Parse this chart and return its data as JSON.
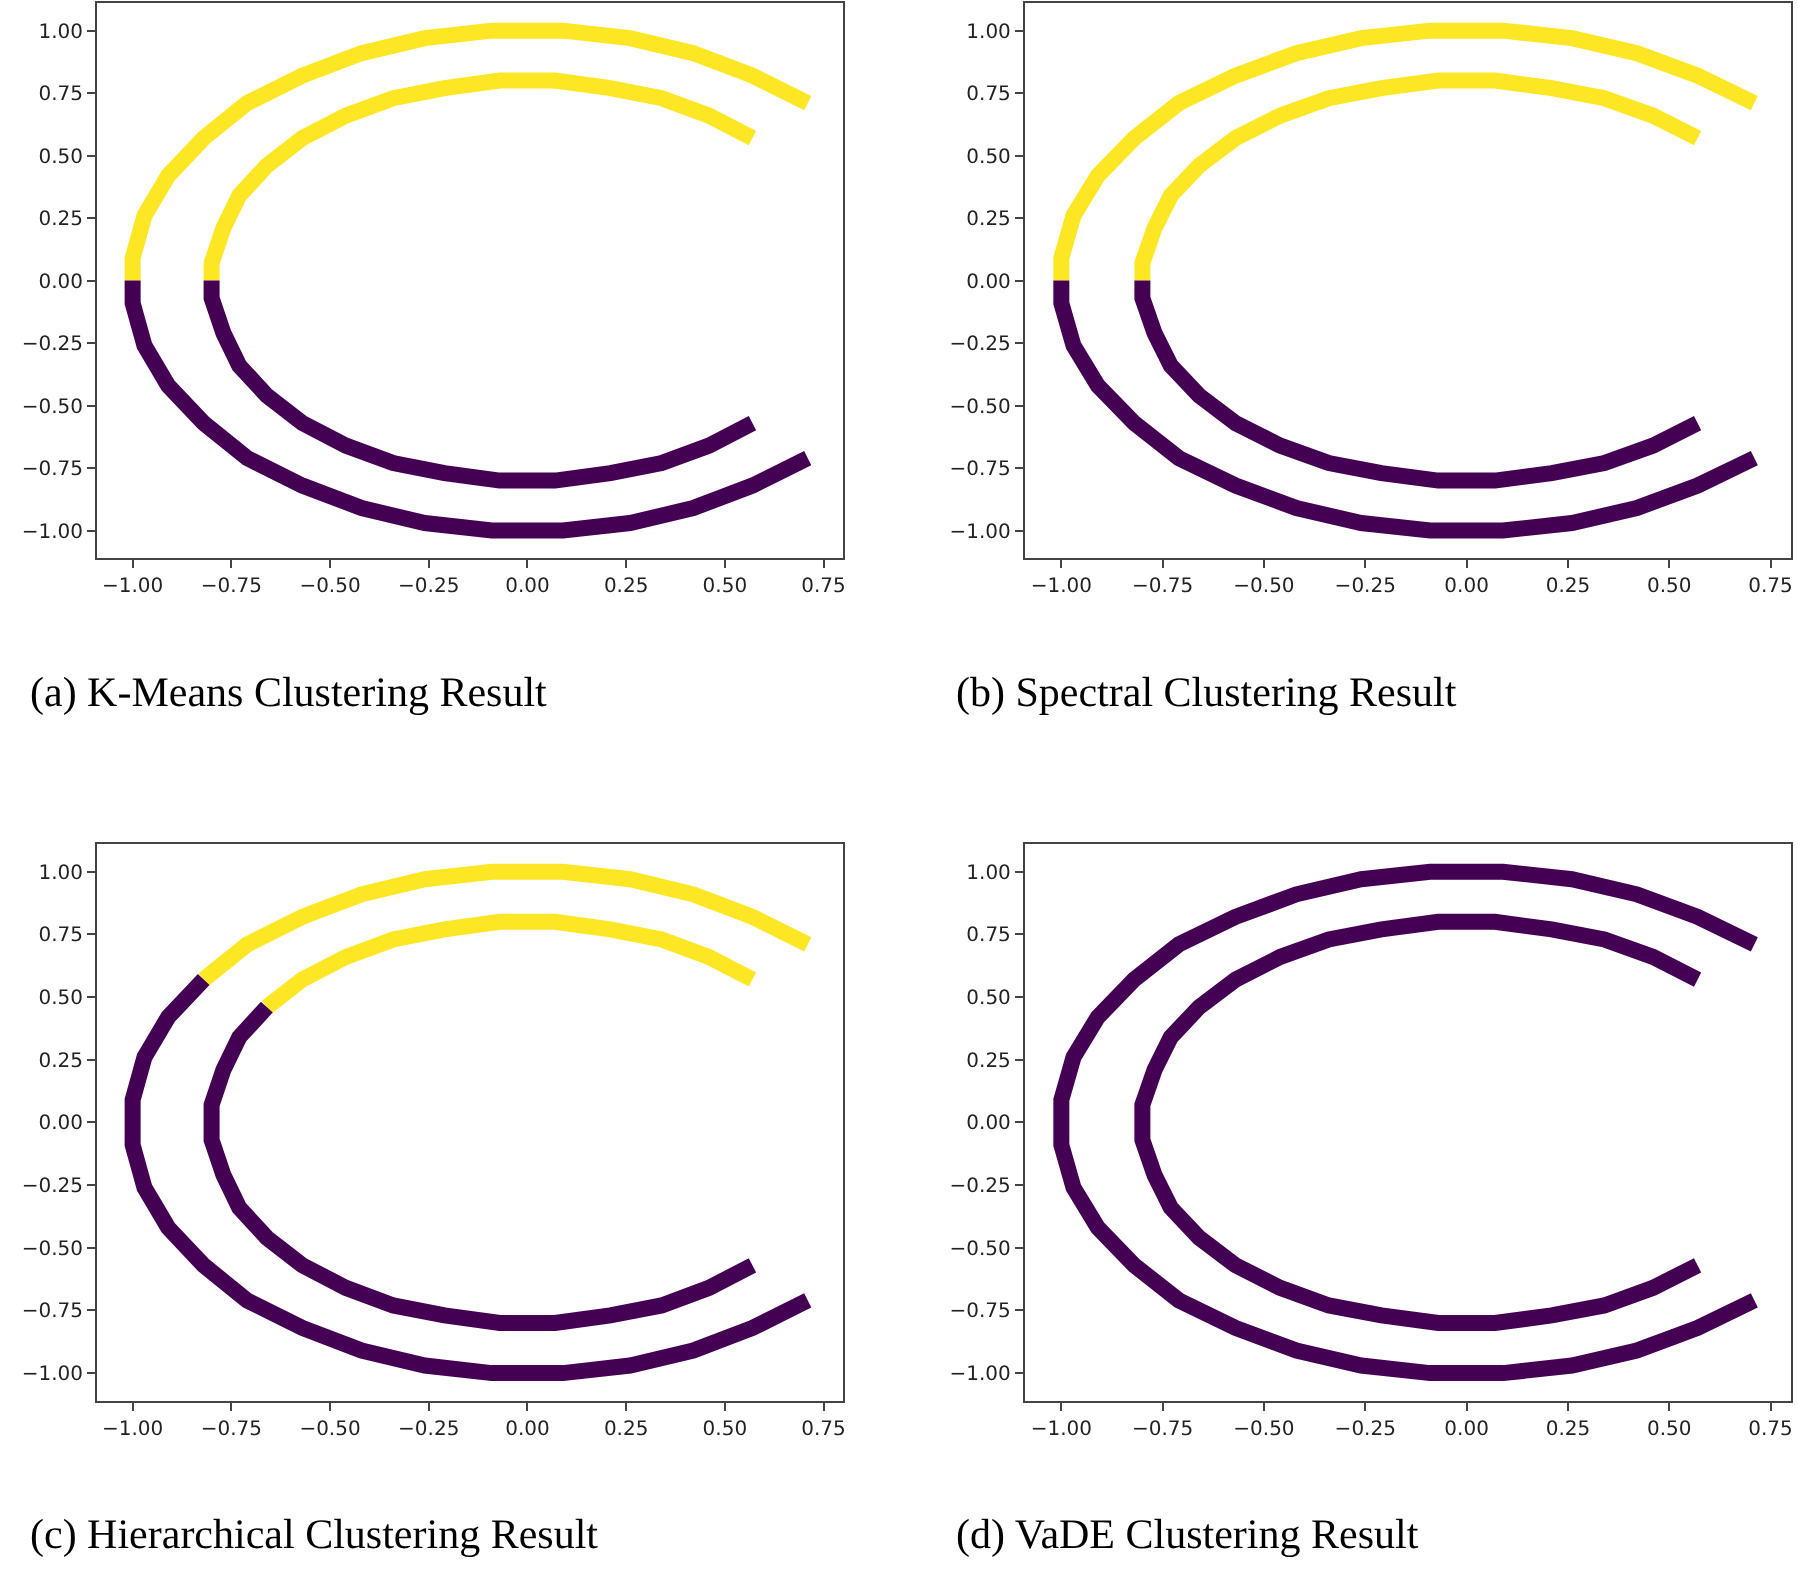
{
  "chart_data": [
    {
      "type": "line",
      "title": "(a) K-Means Clustering Result",
      "line_style": "solid",
      "marker": "none",
      "xlim": [
        -1.09,
        0.8
      ],
      "ylim": [
        -1.11,
        1.11
      ],
      "xticks": [
        {
          "value": -1,
          "label": "−1.00"
        },
        {
          "value": -0.75,
          "label": "−0.75"
        },
        {
          "value": -0.5,
          "label": "−0.50"
        },
        {
          "value": -0.25,
          "label": "−0.25"
        },
        {
          "value": 0,
          "label": "0.00"
        },
        {
          "value": 0.25,
          "label": "0.25"
        },
        {
          "value": 0.5,
          "label": "0.50"
        },
        {
          "value": 0.75,
          "label": "0.75"
        }
      ],
      "yticks": [
        {
          "value": -1,
          "label": "−1.00"
        },
        {
          "value": -0.75,
          "label": "−0.75"
        },
        {
          "value": -0.5,
          "label": "−0.50"
        },
        {
          "value": -0.25,
          "label": "−0.25"
        },
        {
          "value": 0,
          "label": "0.00"
        },
        {
          "value": 0.25,
          "label": "0.25"
        },
        {
          "value": 0.5,
          "label": "0.50"
        },
        {
          "value": 0.75,
          "label": "0.75"
        },
        {
          "value": 1,
          "label": "1.00"
        }
      ],
      "series": [
        {
          "color": "#fde725",
          "x": [
            0.71,
            0.57,
            0.42,
            0.26,
            0.09,
            -0.09,
            -0.26,
            -0.42,
            -0.57,
            -0.71,
            -0.82,
            -0.91,
            -0.97,
            -1.0,
            -1.0,
            null,
            0.57,
            0.46,
            0.34,
            0.21,
            0.07,
            -0.07,
            -0.21,
            -0.34,
            -0.46,
            -0.57,
            -0.66,
            -0.73,
            -0.77,
            -0.8,
            -0.8
          ],
          "values": [
            0.71,
            0.82,
            0.91,
            0.97,
            1.0,
            1.0,
            0.97,
            0.91,
            0.82,
            0.71,
            0.57,
            0.42,
            0.26,
            0.09,
            0,
            null,
            0.57,
            0.66,
            0.73,
            0.77,
            0.8,
            0.8,
            0.77,
            0.73,
            0.66,
            0.57,
            0.46,
            0.34,
            0.21,
            0.07,
            0
          ]
        },
        {
          "color": "#440154",
          "x": [
            -1.0,
            -1.0,
            -0.97,
            -0.91,
            -0.82,
            -0.71,
            -0.57,
            -0.42,
            -0.26,
            -0.09,
            0.09,
            0.26,
            0.42,
            0.57,
            0.71,
            null,
            -0.8,
            -0.8,
            -0.77,
            -0.73,
            -0.66,
            -0.57,
            -0.46,
            -0.34,
            -0.21,
            -0.07,
            0.07,
            0.21,
            0.34,
            0.46,
            0.57
          ],
          "values": [
            0,
            -0.09,
            -0.26,
            -0.42,
            -0.57,
            -0.71,
            -0.82,
            -0.91,
            -0.97,
            -1.0,
            -1.0,
            -0.97,
            -0.91,
            -0.82,
            -0.71,
            null,
            0,
            -0.07,
            -0.21,
            -0.34,
            -0.46,
            -0.57,
            -0.66,
            -0.73,
            -0.77,
            -0.8,
            -0.8,
            -0.77,
            -0.73,
            -0.66,
            -0.57
          ]
        }
      ]
    },
    {
      "type": "line",
      "title": "(b) Spectral Clustering Result",
      "line_style": "solid",
      "marker": "none",
      "xlim": [
        -1.09,
        0.8
      ],
      "ylim": [
        -1.11,
        1.11
      ],
      "xticks": [
        {
          "value": -1,
          "label": "−1.00"
        },
        {
          "value": -0.75,
          "label": "−0.75"
        },
        {
          "value": -0.5,
          "label": "−0.50"
        },
        {
          "value": -0.25,
          "label": "−0.25"
        },
        {
          "value": 0,
          "label": "0.00"
        },
        {
          "value": 0.25,
          "label": "0.25"
        },
        {
          "value": 0.5,
          "label": "0.50"
        },
        {
          "value": 0.75,
          "label": "0.75"
        }
      ],
      "yticks": [
        {
          "value": -1,
          "label": "−1.00"
        },
        {
          "value": -0.75,
          "label": "−0.75"
        },
        {
          "value": -0.5,
          "label": "−0.50"
        },
        {
          "value": -0.25,
          "label": "−0.25"
        },
        {
          "value": 0,
          "label": "0.00"
        },
        {
          "value": 0.25,
          "label": "0.25"
        },
        {
          "value": 0.5,
          "label": "0.50"
        },
        {
          "value": 0.75,
          "label": "0.75"
        },
        {
          "value": 1,
          "label": "1.00"
        }
      ],
      "series": [
        {
          "color": "#fde725",
          "x": [
            0.71,
            0.57,
            0.42,
            0.26,
            0.09,
            -0.09,
            -0.26,
            -0.42,
            -0.57,
            -0.71,
            -0.82,
            -0.91,
            -0.97,
            -1.0,
            -1.0,
            null,
            0.57,
            0.46,
            0.34,
            0.21,
            0.07,
            -0.07,
            -0.21,
            -0.34,
            -0.46,
            -0.57,
            -0.66,
            -0.73,
            -0.77,
            -0.8,
            -0.8
          ],
          "values": [
            0.71,
            0.82,
            0.91,
            0.97,
            1.0,
            1.0,
            0.97,
            0.91,
            0.82,
            0.71,
            0.57,
            0.42,
            0.26,
            0.09,
            0,
            null,
            0.57,
            0.66,
            0.73,
            0.77,
            0.8,
            0.8,
            0.77,
            0.73,
            0.66,
            0.57,
            0.46,
            0.34,
            0.21,
            0.07,
            0
          ]
        },
        {
          "color": "#440154",
          "x": [
            -1.0,
            -1.0,
            -0.97,
            -0.91,
            -0.82,
            -0.71,
            -0.57,
            -0.42,
            -0.26,
            -0.09,
            0.09,
            0.26,
            0.42,
            0.57,
            0.71,
            null,
            -0.8,
            -0.8,
            -0.77,
            -0.73,
            -0.66,
            -0.57,
            -0.46,
            -0.34,
            -0.21,
            -0.07,
            0.07,
            0.21,
            0.34,
            0.46,
            0.57
          ],
          "values": [
            0,
            -0.09,
            -0.26,
            -0.42,
            -0.57,
            -0.71,
            -0.82,
            -0.91,
            -0.97,
            -1.0,
            -1.0,
            -0.97,
            -0.91,
            -0.82,
            -0.71,
            null,
            0,
            -0.07,
            -0.21,
            -0.34,
            -0.46,
            -0.57,
            -0.66,
            -0.73,
            -0.77,
            -0.8,
            -0.8,
            -0.77,
            -0.73,
            -0.66,
            -0.57
          ]
        }
      ]
    },
    {
      "type": "line",
      "title": "(c) Hierarchical Clustering Result",
      "line_style": "solid",
      "marker": "none",
      "xlim": [
        -1.09,
        0.8
      ],
      "ylim": [
        -1.11,
        1.11
      ],
      "xticks": [
        {
          "value": -1,
          "label": "−1.00"
        },
        {
          "value": -0.75,
          "label": "−0.75"
        },
        {
          "value": -0.5,
          "label": "−0.50"
        },
        {
          "value": -0.25,
          "label": "−0.25"
        },
        {
          "value": 0,
          "label": "0.00"
        },
        {
          "value": 0.25,
          "label": "0.25"
        },
        {
          "value": 0.5,
          "label": "0.50"
        },
        {
          "value": 0.75,
          "label": "0.75"
        }
      ],
      "yticks": [
        {
          "value": -1,
          "label": "−1.00"
        },
        {
          "value": -0.75,
          "label": "−0.75"
        },
        {
          "value": -0.5,
          "label": "−0.50"
        },
        {
          "value": -0.25,
          "label": "−0.25"
        },
        {
          "value": 0,
          "label": "0.00"
        },
        {
          "value": 0.25,
          "label": "0.25"
        },
        {
          "value": 0.5,
          "label": "0.50"
        },
        {
          "value": 0.75,
          "label": "0.75"
        },
        {
          "value": 1,
          "label": "1.00"
        }
      ],
      "series": [
        {
          "color": "#fde725",
          "x": [
            0.71,
            0.57,
            0.42,
            0.26,
            0.09,
            -0.09,
            -0.26,
            -0.42,
            -0.57,
            -0.71,
            -0.82,
            null,
            0.57,
            0.46,
            0.34,
            0.21,
            0.07,
            -0.07,
            -0.21,
            -0.34,
            -0.46,
            -0.57,
            -0.66
          ],
          "values": [
            0.71,
            0.82,
            0.91,
            0.97,
            1.0,
            1.0,
            0.97,
            0.91,
            0.82,
            0.71,
            0.57,
            null,
            0.57,
            0.66,
            0.73,
            0.77,
            0.8,
            0.8,
            0.77,
            0.73,
            0.66,
            0.57,
            0.46
          ]
        },
        {
          "color": "#440154",
          "x": [
            -0.82,
            -0.91,
            -0.97,
            -1.0,
            -1.0,
            -1.0,
            -0.97,
            -0.91,
            -0.82,
            -0.71,
            -0.57,
            -0.42,
            -0.26,
            -0.09,
            0.09,
            0.26,
            0.42,
            0.57,
            0.71,
            null,
            -0.66,
            -0.73,
            -0.77,
            -0.8,
            -0.8,
            -0.8,
            -0.77,
            -0.73,
            -0.66,
            -0.57,
            -0.46,
            -0.34,
            -0.21,
            -0.07,
            0.07,
            0.21,
            0.34,
            0.46,
            0.57
          ],
          "values": [
            0.57,
            0.42,
            0.26,
            0.09,
            0,
            -0.09,
            -0.26,
            -0.42,
            -0.57,
            -0.71,
            -0.82,
            -0.91,
            -0.97,
            -1.0,
            -1.0,
            -0.97,
            -0.91,
            -0.82,
            -0.71,
            null,
            0.46,
            0.34,
            0.21,
            0.07,
            0,
            -0.07,
            -0.21,
            -0.34,
            -0.46,
            -0.57,
            -0.66,
            -0.73,
            -0.77,
            -0.8,
            -0.8,
            -0.77,
            -0.73,
            -0.66,
            -0.57
          ]
        }
      ]
    },
    {
      "type": "line",
      "title": "(d) VaDE Clustering Result",
      "line_style": "solid",
      "marker": "none",
      "xlim": [
        -1.09,
        0.8
      ],
      "ylim": [
        -1.11,
        1.11
      ],
      "xticks": [
        {
          "value": -1,
          "label": "−1.00"
        },
        {
          "value": -0.75,
          "label": "−0.75"
        },
        {
          "value": -0.5,
          "label": "−0.50"
        },
        {
          "value": -0.25,
          "label": "−0.25"
        },
        {
          "value": 0,
          "label": "0.00"
        },
        {
          "value": 0.25,
          "label": "0.25"
        },
        {
          "value": 0.5,
          "label": "0.50"
        },
        {
          "value": 0.75,
          "label": "0.75"
        }
      ],
      "yticks": [
        {
          "value": -1,
          "label": "−1.00"
        },
        {
          "value": -0.75,
          "label": "−0.75"
        },
        {
          "value": -0.5,
          "label": "−0.50"
        },
        {
          "value": -0.25,
          "label": "−0.25"
        },
        {
          "value": 0,
          "label": "0.00"
        },
        {
          "value": 0.25,
          "label": "0.25"
        },
        {
          "value": 0.5,
          "label": "0.50"
        },
        {
          "value": 0.75,
          "label": "0.75"
        },
        {
          "value": 1,
          "label": "1.00"
        }
      ],
      "series": [
        {
          "color": "#440154",
          "x": [
            0.71,
            0.57,
            0.42,
            0.26,
            0.09,
            -0.09,
            -0.26,
            -0.42,
            -0.57,
            -0.71,
            -0.82,
            -0.91,
            -0.97,
            -1.0,
            -1.0,
            -1.0,
            -0.97,
            -0.91,
            -0.82,
            -0.71,
            -0.57,
            -0.42,
            -0.26,
            -0.09,
            0.09,
            0.26,
            0.42,
            0.57,
            0.71,
            null,
            0.57,
            0.46,
            0.34,
            0.21,
            0.07,
            -0.07,
            -0.21,
            -0.34,
            -0.46,
            -0.57,
            -0.66,
            -0.73,
            -0.77,
            -0.8,
            -0.8,
            -0.8,
            -0.77,
            -0.73,
            -0.66,
            -0.57,
            -0.46,
            -0.34,
            -0.21,
            -0.07,
            0.07,
            0.21,
            0.34,
            0.46,
            0.57
          ],
          "values": [
            0.71,
            0.82,
            0.91,
            0.97,
            1.0,
            1.0,
            0.97,
            0.91,
            0.82,
            0.71,
            0.57,
            0.42,
            0.26,
            0.09,
            0,
            -0.09,
            -0.26,
            -0.42,
            -0.57,
            -0.71,
            -0.82,
            -0.91,
            -0.97,
            -1.0,
            -1.0,
            -0.97,
            -0.91,
            -0.82,
            -0.71,
            null,
            0.57,
            0.66,
            0.73,
            0.77,
            0.8,
            0.8,
            0.77,
            0.73,
            0.66,
            0.57,
            0.46,
            0.34,
            0.21,
            0.07,
            0,
            -0.07,
            -0.21,
            -0.34,
            -0.46,
            -0.57,
            -0.66,
            -0.73,
            -0.77,
            -0.8,
            -0.8,
            -0.77,
            -0.73,
            -0.66,
            -0.57
          ]
        }
      ]
    }
  ]
}
